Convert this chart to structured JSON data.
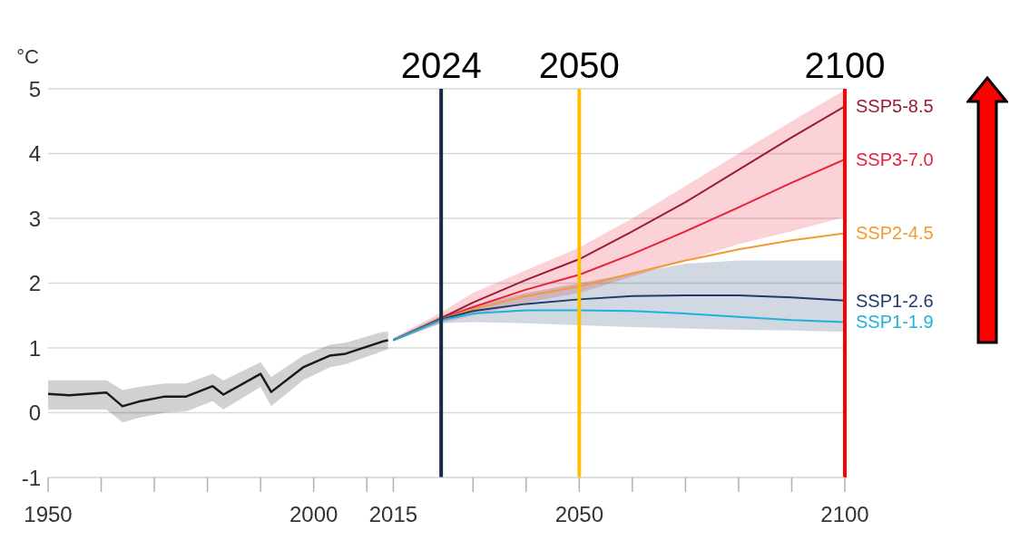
{
  "chart_data": {
    "type": "line",
    "ylabel": "°C",
    "xlim": [
      1950,
      2100
    ],
    "ylim": [
      -1,
      5
    ],
    "xticks": [
      1950,
      {
        "value": 1960,
        "label": null
      },
      {
        "value": 1970,
        "label": null
      },
      {
        "value": 1980,
        "label": null
      },
      {
        "value": 1990,
        "label": null
      },
      2000,
      {
        "value": 2010,
        "label": null
      },
      2015,
      {
        "value": 2030,
        "label": null
      },
      {
        "value": 2040,
        "label": null
      },
      2050,
      {
        "value": 2060,
        "label": null
      },
      {
        "value": 2070,
        "label": null
      },
      {
        "value": 2080,
        "label": null
      },
      {
        "value": 2090,
        "label": null
      },
      2100
    ],
    "yticks": [
      -1,
      0,
      1,
      2,
      3,
      4,
      5
    ],
    "grid": "y",
    "marker": "none",
    "line_style": "solid",
    "series": [
      {
        "color": "#1a1a1a",
        "x": [
          1950,
          1954,
          1961,
          1964,
          1967,
          1972,
          1976,
          1981,
          1983,
          1990,
          1992,
          1998,
          2003,
          2006,
          2013,
          2014
        ],
        "values": [
          0.29,
          0.27,
          0.31,
          0.1,
          0.17,
          0.25,
          0.25,
          0.41,
          0.28,
          0.6,
          0.32,
          0.7,
          0.88,
          0.91,
          1.1,
          1.12
        ],
        "lower": [
          0.05,
          0.05,
          0.05,
          -0.15,
          -0.08,
          0.0,
          0.02,
          0.18,
          0.05,
          0.4,
          0.1,
          0.5,
          0.7,
          0.75,
          0.95,
          0.98
        ],
        "upper": [
          0.5,
          0.5,
          0.5,
          0.35,
          0.4,
          0.45,
          0.45,
          0.6,
          0.5,
          0.78,
          0.55,
          0.88,
          1.05,
          1.08,
          1.25,
          1.25
        ]
      },
      {
        "name": "SSP5-8.5",
        "color": "#9b1c31",
        "x": [
          2015,
          2024,
          2030,
          2040,
          2050,
          2060,
          2070,
          2080,
          2090,
          2100
        ],
        "values": [
          1.12,
          1.46,
          1.7,
          2.05,
          2.37,
          2.8,
          3.25,
          3.75,
          4.25,
          4.73
        ]
      },
      {
        "name": "SSP3-7.0",
        "color": "#e8203a",
        "x": [
          2015,
          2024,
          2030,
          2040,
          2050,
          2060,
          2070,
          2080,
          2090,
          2100
        ],
        "values": [
          1.12,
          1.45,
          1.63,
          1.9,
          2.13,
          2.45,
          2.8,
          3.17,
          3.55,
          3.91
        ],
        "lower": [
          1.1,
          1.38,
          1.5,
          1.7,
          1.85,
          2.1,
          2.35,
          2.6,
          2.8,
          3.02
        ],
        "upper": [
          1.15,
          1.55,
          1.85,
          2.2,
          2.55,
          3.0,
          3.5,
          4.0,
          4.5,
          4.98
        ]
      },
      {
        "name": "SSP2-4.5",
        "color": "#f39a32",
        "x": [
          2015,
          2024,
          2030,
          2040,
          2050,
          2060,
          2070,
          2080,
          2090,
          2100
        ],
        "values": [
          1.12,
          1.44,
          1.6,
          1.8,
          1.95,
          2.15,
          2.35,
          2.52,
          2.66,
          2.77
        ]
      },
      {
        "name": "SSP1-2.6",
        "color": "#1f3a68",
        "x": [
          2015,
          2024,
          2030,
          2040,
          2050,
          2060,
          2070,
          2080,
          2090,
          2100
        ],
        "values": [
          1.12,
          1.44,
          1.57,
          1.68,
          1.75,
          1.8,
          1.81,
          1.81,
          1.78,
          1.73
        ],
        "lower": [
          1.1,
          1.38,
          1.4,
          1.38,
          1.35,
          1.32,
          1.3,
          1.28,
          1.27,
          1.25
        ],
        "upper": [
          1.15,
          1.5,
          1.65,
          1.85,
          2.0,
          2.15,
          2.3,
          2.35,
          2.35,
          2.35
        ]
      },
      {
        "name": "SSP1-1.9",
        "color": "#1fb2d8",
        "x": [
          2015,
          2024,
          2030,
          2040,
          2050,
          2060,
          2070,
          2080,
          2090,
          2100
        ],
        "values": [
          1.12,
          1.43,
          1.53,
          1.58,
          1.58,
          1.57,
          1.53,
          1.48,
          1.43,
          1.4
        ]
      }
    ],
    "ref_lines": [
      {
        "axis": "x",
        "value": 2024,
        "label": "2024",
        "color": "#1b2a44"
      },
      {
        "axis": "x",
        "value": 2050,
        "label": "2050",
        "color": "#ffc000"
      },
      {
        "axis": "x",
        "value": 2100,
        "label": "2100",
        "color": "#ff0000"
      }
    ]
  }
}
